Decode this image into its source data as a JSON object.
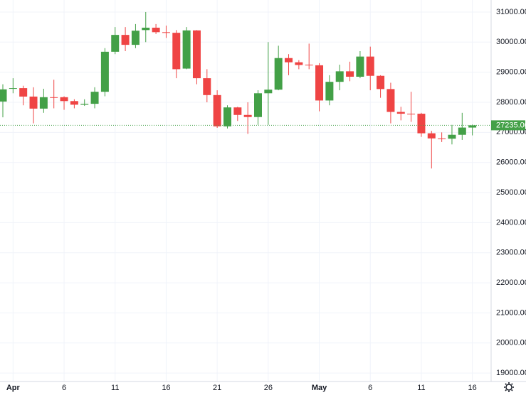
{
  "chart_data": {
    "type": "candlestick",
    "categories": [
      null,
      "Apr",
      null,
      null,
      null,
      null,
      "6",
      null,
      null,
      null,
      null,
      "11",
      null,
      null,
      null,
      null,
      "16",
      null,
      null,
      null,
      null,
      "21",
      null,
      null,
      null,
      null,
      "26",
      null,
      null,
      null,
      null,
      "May",
      null,
      null,
      null,
      null,
      "6",
      null,
      null,
      null,
      null,
      "11",
      null,
      null,
      null,
      null,
      "16"
    ],
    "open": [
      28025,
      28450,
      28470,
      28190,
      27790,
      28170,
      28170,
      28040,
      27920,
      27950,
      28350,
      29680,
      30240,
      29910,
      30400,
      30480,
      30330,
      30310,
      29120,
      30390,
      28800,
      28240,
      27200,
      27830,
      27580,
      27510,
      28300,
      28420,
      29470,
      29330,
      29250,
      29230,
      28060,
      28680,
      29030,
      28850,
      29520,
      28880,
      28440,
      27680,
      27620,
      27620,
      26970,
      26800,
      26790,
      26920,
      27160
    ],
    "high": [
      28600,
      28800,
      28550,
      28500,
      28450,
      28750,
      28200,
      28100,
      28100,
      28500,
      29800,
      30500,
      30500,
      30600,
      31000,
      30600,
      30550,
      30400,
      30500,
      30400,
      29100,
      28400,
      27900,
      27850,
      28000,
      28400,
      30000,
      29880,
      29600,
      29400,
      29950,
      29300,
      28900,
      29250,
      29350,
      29700,
      29850,
      28900,
      28650,
      27850,
      28350,
      27650,
      27050,
      27000,
      27250,
      27650,
      27260
    ],
    "low": [
      27500,
      28300,
      27900,
      27300,
      27650,
      27800,
      27750,
      27800,
      27880,
      27800,
      28200,
      29600,
      29700,
      29800,
      30000,
      30270,
      30140,
      28800,
      29100,
      28600,
      28000,
      27150,
      27130,
      27380,
      26950,
      27250,
      27250,
      28400,
      28900,
      29100,
      29100,
      27700,
      27900,
      28400,
      28700,
      28800,
      28400,
      28150,
      27300,
      27400,
      27350,
      26850,
      25800,
      26680,
      26600,
      26750,
      26900
    ],
    "close": [
      28430,
      28470,
      28190,
      27790,
      28170,
      28150,
      28040,
      27920,
      27950,
      28350,
      29680,
      30240,
      29910,
      30380,
      30480,
      30330,
      30310,
      29100,
      30390,
      28800,
      28240,
      27200,
      27830,
      27580,
      27510,
      28300,
      28420,
      29470,
      29330,
      29240,
      29230,
      28060,
      28680,
      29030,
      28850,
      29520,
      28880,
      28440,
      27680,
      27620,
      27600,
      26970,
      26800,
      26780,
      26920,
      27160,
      27235
    ],
    "up_color": "#43a047",
    "down_color": "#ef4444",
    "ylim": [
      18720,
      31400
    ],
    "yticks": [
      {
        "value": 19000,
        "label": "19000.00"
      },
      {
        "value": 20000,
        "label": "20000.00"
      },
      {
        "value": 21000,
        "label": "21000.00"
      },
      {
        "value": 22000,
        "label": "22000.00"
      },
      {
        "value": 23000,
        "label": "23000.00"
      },
      {
        "value": 24000,
        "label": "24000.00"
      },
      {
        "value": 25000,
        "label": "25000.00"
      },
      {
        "value": 26000,
        "label": "26000.00"
      },
      {
        "value": 27000,
        "label": "27000.00"
      },
      {
        "value": 28000,
        "label": "28000.00"
      },
      {
        "value": 29000,
        "label": "29000.00"
      },
      {
        "value": 30000,
        "label": "30000.00"
      },
      {
        "value": 31000,
        "label": "31000.00"
      }
    ],
    "last_price": {
      "value": 27235,
      "label": "27235.00"
    },
    "grid": true
  }
}
